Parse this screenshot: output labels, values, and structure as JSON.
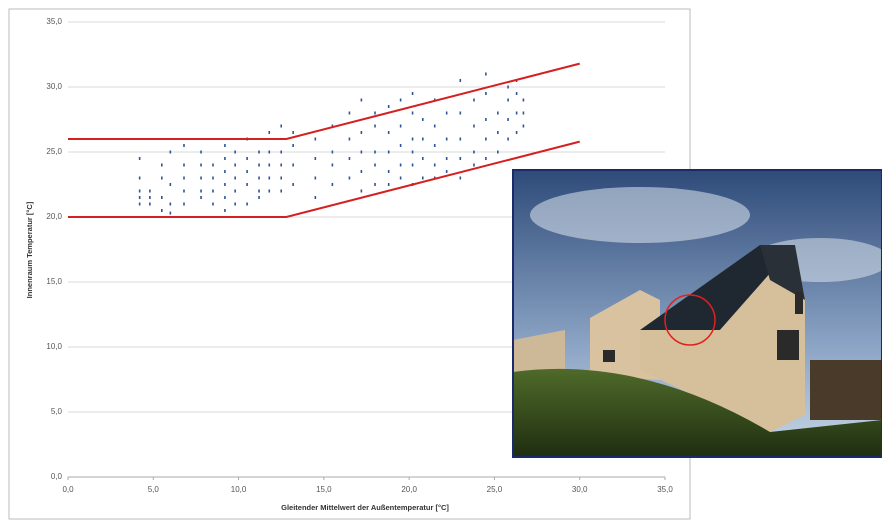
{
  "chart_data": {
    "type": "scatter",
    "x_label": "Gleitender Mittelwert der Außentemperatur [°C]",
    "y_label": "Innenraum Temperatur [°C]",
    "xlim": [
      0,
      35
    ],
    "ylim": [
      0,
      35
    ],
    "xticks": [
      {
        "value": 0,
        "label": "0,0"
      },
      {
        "value": 5,
        "label": "5,0"
      },
      {
        "value": 10,
        "label": "10,0"
      },
      {
        "value": 15,
        "label": "15,0"
      },
      {
        "value": 20,
        "label": "20,0"
      },
      {
        "value": 25,
        "label": "25,0"
      },
      {
        "value": 30,
        "label": "30,0"
      },
      {
        "value": 35,
        "label": "35,0"
      }
    ],
    "yticks": [
      {
        "value": 0,
        "label": "0,0"
      },
      {
        "value": 5,
        "label": "5,0"
      },
      {
        "value": 10,
        "label": "10,0"
      },
      {
        "value": 15,
        "label": "15,0"
      },
      {
        "value": 20,
        "label": "20,0"
      },
      {
        "value": 25,
        "label": "25,0"
      },
      {
        "value": 30,
        "label": "30,0"
      },
      {
        "value": 35,
        "label": "35,0"
      }
    ],
    "grid": true,
    "series": [
      {
        "type": "scatter",
        "color": "#2f5597",
        "x": [
          4.2,
          4.2,
          4.2,
          4.2,
          4.2,
          4.8,
          4.8,
          4.8,
          5.5,
          5.5,
          5.5,
          5.5,
          6.0,
          6.0,
          6.0,
          6.0,
          6.8,
          6.8,
          6.8,
          6.8,
          6.8,
          7.8,
          7.8,
          7.8,
          7.8,
          7.8,
          8.5,
          8.5,
          8.5,
          8.5,
          9.2,
          9.2,
          9.2,
          9.2,
          9.2,
          9.2,
          9.8,
          9.8,
          9.8,
          9.8,
          9.8,
          10.5,
          10.5,
          10.5,
          10.5,
          10.5,
          11.2,
          11.2,
          11.2,
          11.2,
          11.2,
          11.8,
          11.8,
          11.8,
          11.8,
          11.8,
          12.5,
          12.5,
          12.5,
          12.5,
          12.5,
          13.2,
          13.2,
          13.2,
          13.2,
          14.5,
          14.5,
          14.5,
          14.5,
          15.5,
          15.5,
          15.5,
          15.5,
          16.5,
          16.5,
          16.5,
          16.5,
          17.2,
          17.2,
          17.2,
          17.2,
          17.2,
          18.0,
          18.0,
          18.0,
          18.0,
          18.0,
          18.8,
          18.8,
          18.8,
          18.8,
          18.8,
          19.5,
          19.5,
          19.5,
          19.5,
          19.5,
          20.2,
          20.2,
          20.2,
          20.2,
          20.2,
          20.2,
          20.8,
          20.8,
          20.8,
          20.8,
          21.5,
          21.5,
          21.5,
          21.5,
          21.5,
          22.2,
          22.2,
          22.2,
          22.2,
          23.0,
          23.0,
          23.0,
          23.0,
          23.0,
          23.8,
          23.8,
          23.8,
          23.8,
          24.5,
          24.5,
          24.5,
          24.5,
          24.5,
          25.2,
          25.2,
          25.2,
          25.8,
          25.8,
          25.8,
          25.8,
          26.3,
          26.3,
          26.3,
          26.3,
          26.7,
          26.7,
          26.7
        ],
        "values": [
          21,
          22,
          23,
          24.5,
          21.5,
          21,
          22,
          21.5,
          20.5,
          21.5,
          23,
          24,
          20.3,
          21,
          22.5,
          25,
          21,
          22,
          23,
          24,
          25.5,
          22,
          23,
          24,
          21.5,
          25,
          21,
          22,
          23,
          24,
          20.5,
          21.5,
          22.5,
          23.5,
          24.5,
          25.5,
          21,
          22,
          23,
          24,
          25,
          21,
          22.5,
          23.5,
          24.5,
          26,
          21.5,
          22,
          23,
          24,
          25,
          22,
          23,
          24,
          25,
          26.5,
          22,
          23,
          24,
          25,
          27,
          22.5,
          24,
          25.5,
          26.5,
          21.5,
          23,
          24.5,
          26,
          22.5,
          24,
          25,
          27,
          23,
          24.5,
          26,
          28,
          22,
          23.5,
          25,
          26.5,
          29,
          22.5,
          24,
          25,
          27,
          28,
          22.5,
          23.5,
          25,
          26.5,
          28.5,
          23,
          24,
          25.5,
          27,
          29,
          22.5,
          24,
          25,
          26,
          28,
          29.5,
          23,
          24.5,
          26,
          27.5,
          23,
          24,
          25.5,
          27,
          29,
          23.5,
          24.5,
          26,
          28,
          23,
          24.5,
          26,
          28,
          30.5,
          24,
          25,
          27,
          29,
          24.5,
          26,
          27.5,
          29.5,
          31,
          25,
          26.5,
          28,
          26,
          27.5,
          29,
          30,
          26.5,
          28,
          29.5,
          30.5,
          27,
          28,
          29
        ]
      },
      {
        "type": "line",
        "color": "#d42020",
        "x": [
          0,
          12.8,
          30
        ],
        "values": [
          26,
          26,
          31.8
        ]
      },
      {
        "type": "line",
        "color": "#d42020",
        "x": [
          0,
          12.8,
          30
        ],
        "values": [
          20,
          20,
          25.8
        ]
      }
    ]
  }
}
